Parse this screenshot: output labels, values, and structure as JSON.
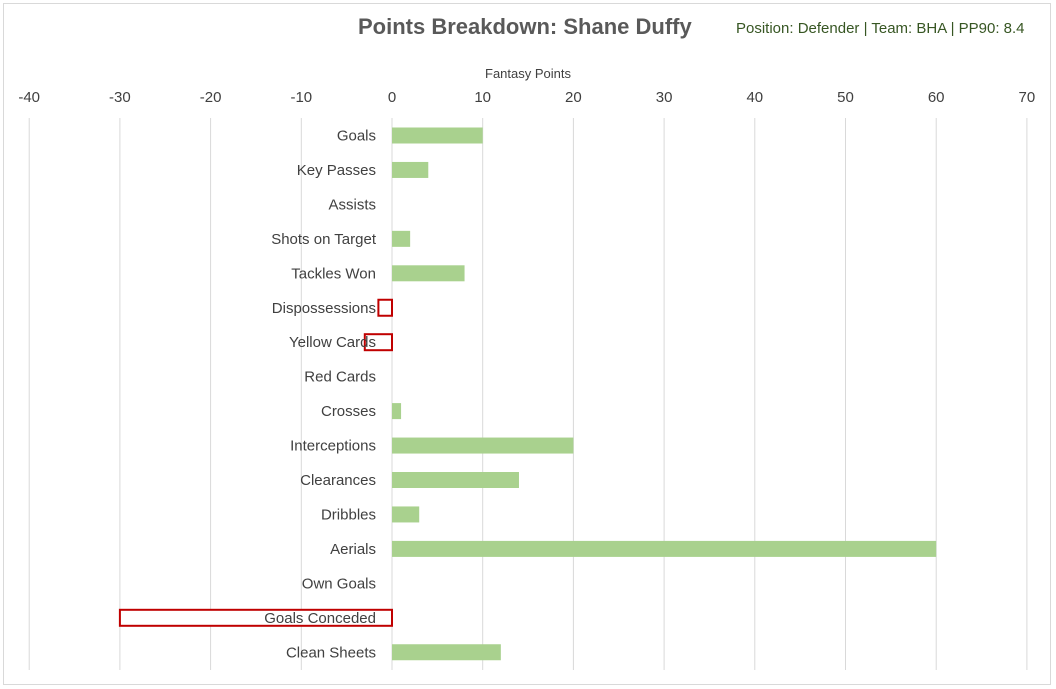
{
  "chart_data": {
    "type": "bar",
    "orientation": "horizontal",
    "title": "Points Breakdown: Shane Duffy",
    "subtitle": "Position: Defender | Team: BHA | PP90: 8.4",
    "xlabel": "Fantasy Points",
    "ylabel": "",
    "xlim": [
      -40,
      70
    ],
    "xticks": [
      -40,
      -30,
      -20,
      -10,
      0,
      10,
      20,
      30,
      40,
      50,
      60,
      70
    ],
    "x_axis_position": "top",
    "grid": "vertical",
    "legend": "none",
    "categories": [
      "Goals",
      "Key Passes",
      "Assists",
      "Shots on Target",
      "Tackles Won",
      "Dispossessions",
      "Yellow Cards",
      "Red Cards",
      "Crosses",
      "Interceptions",
      "Clearances",
      "Dribbles",
      "Aerials",
      "Own Goals",
      "Goals Conceded",
      "Clean Sheets"
    ],
    "values": [
      10,
      4,
      0,
      2,
      8,
      -1.5,
      -3,
      0,
      1,
      20,
      14,
      3,
      60,
      0,
      -30,
      12
    ],
    "colors": {
      "positive_fill": "#a9d18e",
      "negative_fill": "#ffffff",
      "negative_border": "#c00000",
      "gridline": "#d9d9d9",
      "label_text": "#404040",
      "title_text": "#595959",
      "subtitle_text": "#375623"
    }
  }
}
